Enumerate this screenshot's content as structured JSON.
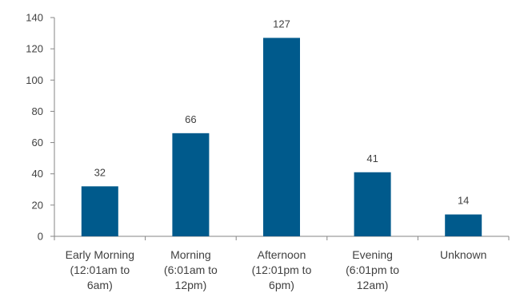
{
  "chart_data": {
    "type": "bar",
    "categories": [
      [
        "Early Morning",
        "(12:01am to",
        "6am)"
      ],
      [
        "Morning",
        "(6:01am to",
        "12pm)"
      ],
      [
        "Afternoon",
        "(12:01pm to",
        "6pm)"
      ],
      [
        "Evening",
        "(6:01pm to",
        "12am)"
      ],
      [
        "Unknown"
      ]
    ],
    "values": [
      32,
      66,
      127,
      41,
      14
    ],
    "data_labels": [
      "32",
      "66",
      "127",
      "41",
      "14"
    ],
    "y_ticks": [
      "0",
      "20",
      "40",
      "60",
      "80",
      "100",
      "120",
      "140"
    ],
    "ylim": [
      0,
      140
    ],
    "grid": false,
    "bar_color": "#005a8c",
    "axis_color": "#868686",
    "text_color": "#404040"
  }
}
